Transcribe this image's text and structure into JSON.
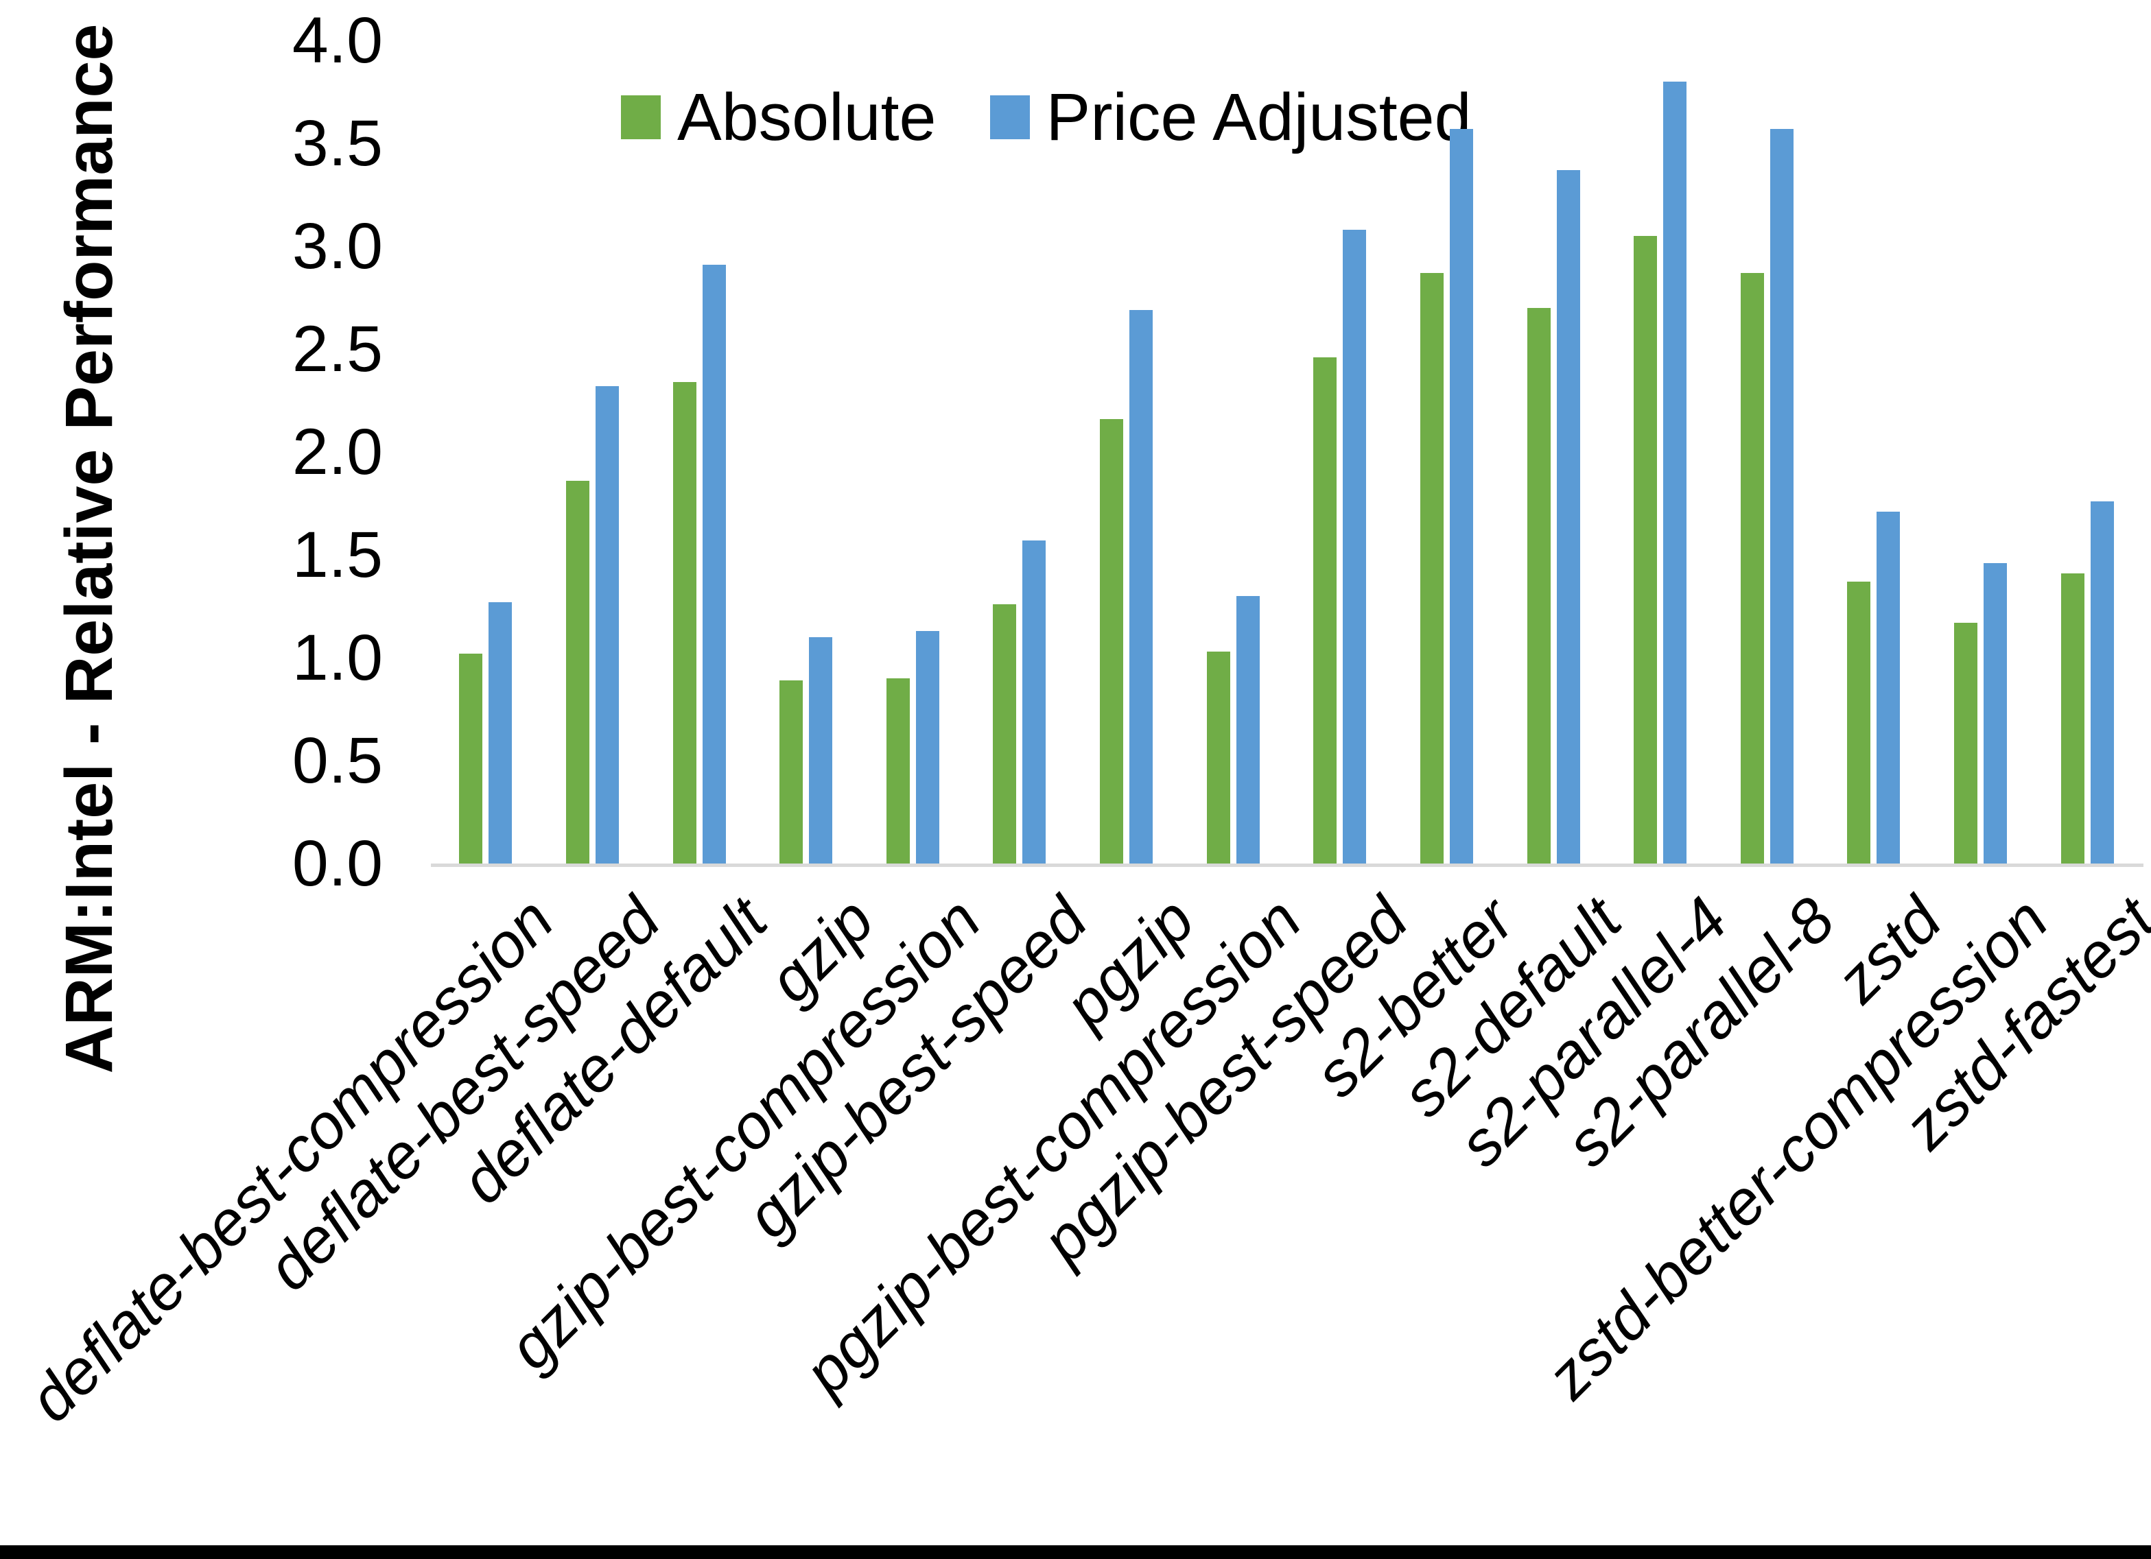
{
  "chart_data": {
    "type": "bar",
    "title": "",
    "ylabel": "ARM:Intel - Relative Performance",
    "xlabel": "",
    "ylim": [
      0.0,
      4.0
    ],
    "y_tick_step": 0.5,
    "y_tick_labels": [
      "0.0",
      "0.5",
      "1.0",
      "1.5",
      "2.0",
      "2.5",
      "3.0",
      "3.5",
      "4.0"
    ],
    "grid": false,
    "legend_position": "top-center",
    "axis_line_color": "#d9d9d9",
    "categories": [
      "deflate-best-compression",
      "deflate-best-speed",
      "deflate-default",
      "gzip",
      "gzip-best-compression",
      "gzip-best-speed",
      "pgzip",
      "pgzip-best-compression",
      "pgzip-best-speed",
      "s2-better",
      "s2-default",
      "s2-parallel-4",
      "s2-parallel-8",
      "zstd",
      "zstd-better-compression",
      "zstd-fastest"
    ],
    "series": [
      {
        "name": "Absolute",
        "color": "#70ad47",
        "values": [
          1.02,
          1.86,
          2.34,
          0.89,
          0.9,
          1.26,
          2.16,
          1.03,
          2.46,
          2.87,
          2.7,
          3.05,
          2.87,
          1.37,
          1.17,
          1.41
        ]
      },
      {
        "name": "Price Adjusted",
        "color": "#5b9bd5",
        "values": [
          1.27,
          2.32,
          2.91,
          1.1,
          1.13,
          1.57,
          2.69,
          1.3,
          3.08,
          3.57,
          3.37,
          3.8,
          3.57,
          1.71,
          1.46,
          1.76
        ]
      }
    ]
  }
}
